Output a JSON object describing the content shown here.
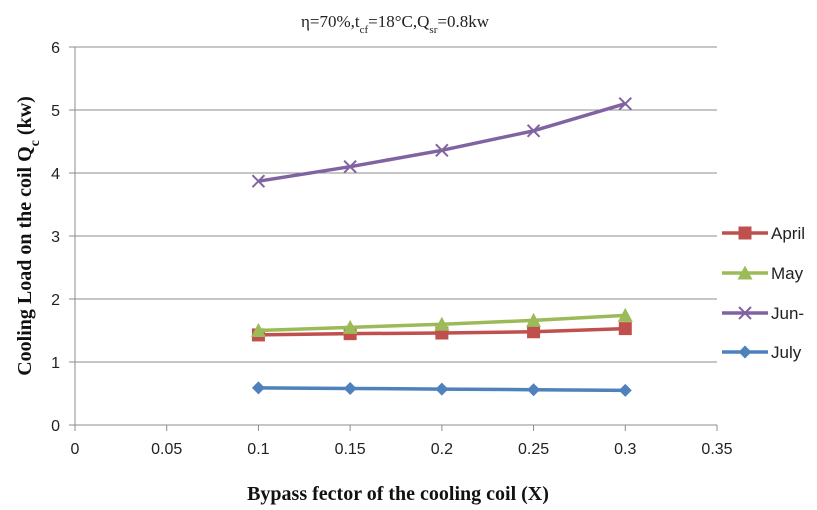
{
  "chart_data": {
    "type": "line",
    "title": "η=70%,t",
    "title_parts": {
      "lead": "η=70%,t",
      "sub1": "cf",
      "mid": "=18°C,Q",
      "sub2": "sr",
      "tail": "=0.8kw"
    },
    "xlabel": "Bypass fector of the cooling coil  (X)",
    "ylabel": "Cooling Load on the coil Q",
    "ylabel_sub": "c",
    "ylabel_tail": " (kw)",
    "x": [
      0.1,
      0.15,
      0.2,
      0.25,
      0.3
    ],
    "xlim": [
      0,
      0.35
    ],
    "ylim": [
      0,
      6
    ],
    "xticks": [
      "0",
      "0.05",
      "0.1",
      "0.15",
      "0.2",
      "0.25",
      "0.3",
      "0.35"
    ],
    "yticks": [
      "0",
      "1",
      "2",
      "3",
      "4",
      "5",
      "6"
    ],
    "grid": "horizontal",
    "legend_position": "right",
    "series": [
      {
        "name": "April",
        "values": [
          1.43,
          1.45,
          1.46,
          1.48,
          1.53
        ],
        "color": "#c0504d",
        "marker": "square"
      },
      {
        "name": "May",
        "values": [
          1.5,
          1.55,
          1.6,
          1.66,
          1.74
        ],
        "color": "#9bbb59",
        "marker": "triangle"
      },
      {
        "name": "Jun-",
        "values": [
          3.87,
          4.1,
          4.36,
          4.67,
          5.1
        ],
        "color": "#8064a2",
        "marker": "x"
      },
      {
        "name": "July",
        "values": [
          0.59,
          0.58,
          0.57,
          0.56,
          0.55
        ],
        "color": "#4f81bd",
        "marker": "diamond"
      }
    ]
  }
}
